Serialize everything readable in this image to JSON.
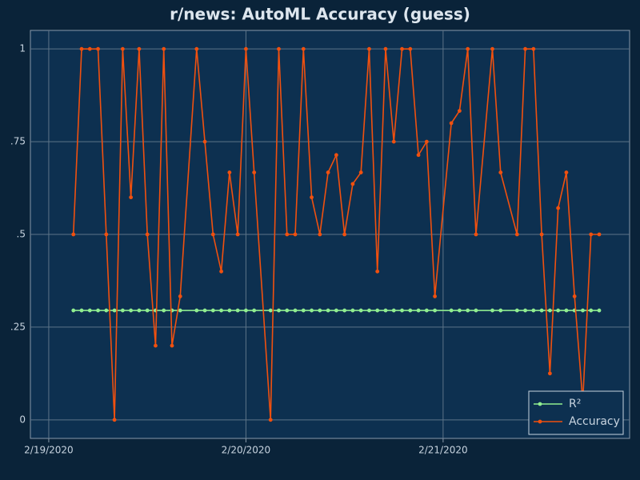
{
  "chart_data": {
    "type": "line",
    "title": "r/news: AutoML Accuracy (guess)",
    "x": [
      "2020-02-19T03:00",
      "2020-02-19T04:00",
      "2020-02-19T05:00",
      "2020-02-19T06:00",
      "2020-02-19T07:00",
      "2020-02-19T08:00",
      "2020-02-19T09:00",
      "2020-02-19T10:00",
      "2020-02-19T11:00",
      "2020-02-19T12:00",
      "2020-02-19T13:00",
      "2020-02-19T14:00",
      "2020-02-19T15:00",
      "2020-02-19T16:00",
      "2020-02-19T18:00",
      "2020-02-19T19:00",
      "2020-02-19T20:00",
      "2020-02-19T21:00",
      "2020-02-19T22:00",
      "2020-02-19T23:00",
      "2020-02-20T00:00",
      "2020-02-20T01:00",
      "2020-02-20T03:00",
      "2020-02-20T04:00",
      "2020-02-20T05:00",
      "2020-02-20T06:00",
      "2020-02-20T07:00",
      "2020-02-20T08:00",
      "2020-02-20T09:00",
      "2020-02-20T10:00",
      "2020-02-20T11:00",
      "2020-02-20T12:00",
      "2020-02-20T13:00",
      "2020-02-20T14:00",
      "2020-02-20T15:00",
      "2020-02-20T16:00",
      "2020-02-20T17:00",
      "2020-02-20T18:00",
      "2020-02-20T19:00",
      "2020-02-20T20:00",
      "2020-02-20T21:00",
      "2020-02-20T22:00",
      "2020-02-20T23:00",
      "2020-02-21T01:00",
      "2020-02-21T02:00",
      "2020-02-21T03:00",
      "2020-02-21T04:00",
      "2020-02-21T06:00",
      "2020-02-21T07:00",
      "2020-02-21T09:00",
      "2020-02-21T10:00",
      "2020-02-21T11:00",
      "2020-02-21T12:00",
      "2020-02-21T13:00",
      "2020-02-21T14:00",
      "2020-02-21T15:00",
      "2020-02-21T16:00",
      "2020-02-21T17:00",
      "2020-02-21T18:00",
      "2020-02-21T19:00"
    ],
    "series": [
      {
        "name": "R²",
        "color": "#90ee90",
        "values": [
          0.295,
          0.295,
          0.295,
          0.295,
          0.295,
          0.295,
          0.295,
          0.295,
          0.295,
          0.295,
          0.295,
          0.295,
          0.295,
          0.295,
          0.295,
          0.295,
          0.295,
          0.295,
          0.295,
          0.295,
          0.295,
          0.295,
          0.295,
          0.295,
          0.295,
          0.295,
          0.295,
          0.295,
          0.295,
          0.295,
          0.295,
          0.295,
          0.295,
          0.295,
          0.295,
          0.295,
          0.295,
          0.295,
          0.295,
          0.295,
          0.295,
          0.295,
          0.295,
          0.295,
          0.295,
          0.295,
          0.295,
          0.295,
          0.295,
          0.295,
          0.295,
          0.295,
          0.295,
          0.295,
          0.295,
          0.295,
          0.295,
          0.295,
          0.295,
          0.295
        ]
      },
      {
        "name": "Accuracy",
        "color": "#f0500f",
        "values": [
          0.5,
          1,
          1,
          1,
          0.5,
          0,
          1,
          0.6,
          1,
          0.5,
          0.2,
          1,
          0.2,
          0.333,
          1,
          0.75,
          0.5,
          0.4,
          0.667,
          0.5,
          1,
          0.667,
          0,
          1,
          0.5,
          0.5,
          1,
          0.6,
          0.5,
          0.667,
          0.714,
          0.5,
          0.636,
          0.667,
          1,
          0.4,
          1,
          0.75,
          1,
          1,
          0.714,
          0.75,
          0.333,
          0.8,
          0.833,
          1,
          0.5,
          1,
          0.667,
          0.5,
          1,
          1,
          0.5,
          0.125,
          0.571,
          0.667,
          0.333,
          0.05,
          0.5,
          0.5
        ]
      }
    ],
    "xlim": [
      "2020-02-18T21:46",
      "2020-02-21T22:42"
    ],
    "xticks": [
      {
        "value": "2020-02-19T00:00",
        "label": "2/19/2020"
      },
      {
        "value": "2020-02-20T00:00",
        "label": "2/20/2020"
      },
      {
        "value": "2020-02-21T00:00",
        "label": "2/21/2020"
      }
    ],
    "ylim": [
      -0.05,
      1.05
    ],
    "yticks": [
      0,
      {
        "value": 0.25,
        "label": ".25"
      },
      {
        "value": 0.5,
        "label": ".5"
      },
      {
        "value": 0.75,
        "label": ".75"
      },
      1
    ],
    "grid": true,
    "legend": "bottom-right"
  }
}
